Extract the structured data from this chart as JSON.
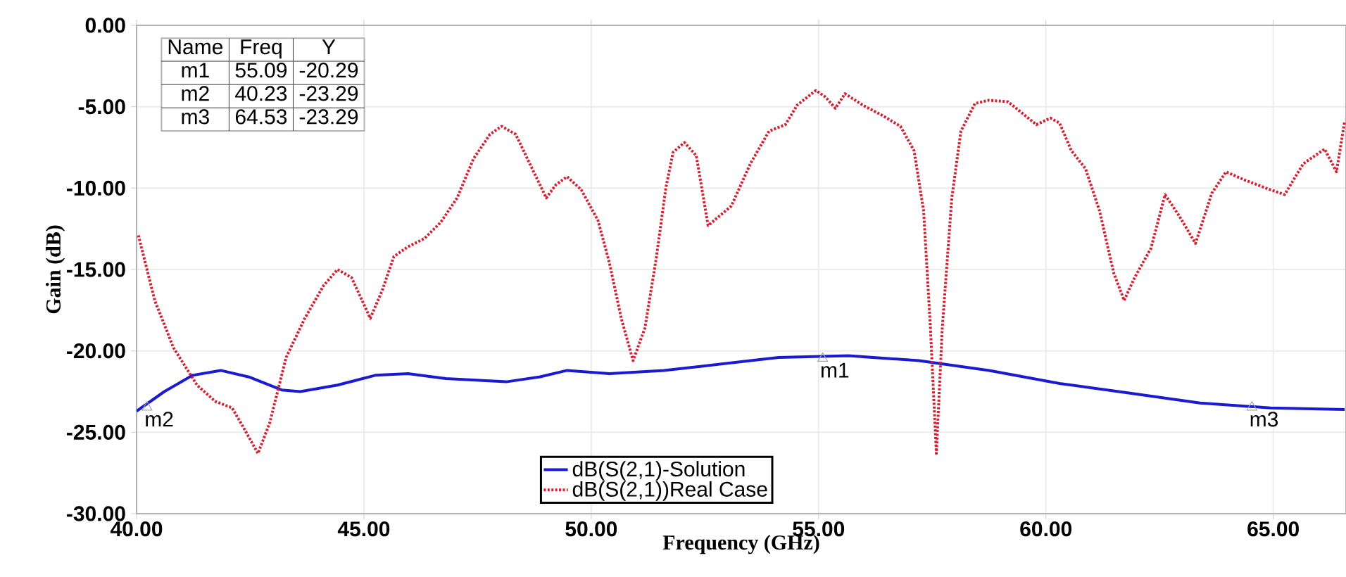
{
  "chart_data": {
    "type": "line",
    "xlabel": "Frequency (GHz)",
    "ylabel": "Gain (dB)",
    "xlim": [
      40,
      66.6
    ],
    "ylim": [
      -30,
      0
    ],
    "xticks": [
      {
        "value": 40,
        "label": "40.00"
      },
      {
        "value": 45,
        "label": "45.00"
      },
      {
        "value": 50,
        "label": "50.00"
      },
      {
        "value": 55,
        "label": "55.00"
      },
      {
        "value": 60,
        "label": "60.00"
      },
      {
        "value": 65,
        "label": "65.00"
      }
    ],
    "yticks": [
      {
        "value": -30,
        "label": "-30.00"
      },
      {
        "value": -25,
        "label": "-25.00"
      },
      {
        "value": -20,
        "label": "-20.00"
      },
      {
        "value": -15,
        "label": "-15.00"
      },
      {
        "value": -10,
        "label": "-10.00"
      },
      {
        "value": -5,
        "label": "-5.00"
      },
      {
        "value": 0,
        "label": "0.00"
      }
    ],
    "grid": true,
    "legend": "bottom",
    "marker": "none",
    "series": [
      {
        "name": "dB(S(2,1)-Solution",
        "color": "#1a1ad0",
        "line_style": "solid",
        "x": [
          40.0,
          40.61,
          41.23,
          41.85,
          42.47,
          43.19,
          43.6,
          44.42,
          45.25,
          45.97,
          46.8,
          48.13,
          48.86,
          49.47,
          50.4,
          51.6,
          52.57,
          54.12,
          55.66,
          57.21,
          58.75,
          60.3,
          61.85,
          63.39,
          64.94,
          66.57
        ],
        "values": [
          -23.7,
          -22.5,
          -21.5,
          -21.2,
          -21.6,
          -22.4,
          -22.5,
          -22.1,
          -21.5,
          -21.4,
          -21.7,
          -21.9,
          -21.6,
          -21.2,
          -21.4,
          -21.2,
          -20.9,
          -20.4,
          -20.3,
          -20.6,
          -21.2,
          -22.0,
          -22.6,
          -23.2,
          -23.5,
          -23.6
        ]
      },
      {
        "name": "dB(S(2,1))Real Case",
        "color": "#d42030",
        "line_style": "dotted",
        "x": [
          40.04,
          40.4,
          40.81,
          41.33,
          41.73,
          42.1,
          42.35,
          42.67,
          42.93,
          43.29,
          43.7,
          44.11,
          44.42,
          44.73,
          45.14,
          45.4,
          45.66,
          45.97,
          46.33,
          46.69,
          47.05,
          47.41,
          47.77,
          48.03,
          48.34,
          48.7,
          49.01,
          49.22,
          49.47,
          49.78,
          50.15,
          50.4,
          50.66,
          50.92,
          51.18,
          51.43,
          51.64,
          51.8,
          52.05,
          52.31,
          52.57,
          53.08,
          53.5,
          53.91,
          54.27,
          54.53,
          54.94,
          55.15,
          55.37,
          55.58,
          55.97,
          56.38,
          56.8,
          57.1,
          57.31,
          57.46,
          57.59,
          57.72,
          57.93,
          58.13,
          58.44,
          58.75,
          59.17,
          59.48,
          59.79,
          60.1,
          60.3,
          60.56,
          60.87,
          61.18,
          61.49,
          61.72,
          61.95,
          62.31,
          62.62,
          62.93,
          63.29,
          63.65,
          63.96,
          64.37,
          64.84,
          65.25,
          65.66,
          66.13,
          66.39,
          66.57
        ],
        "values": [
          -12.9,
          -16.9,
          -19.8,
          -22.1,
          -23.1,
          -23.5,
          -24.7,
          -26.3,
          -24.4,
          -20.4,
          -18.0,
          -16.0,
          -15.0,
          -15.5,
          -18.0,
          -16.3,
          -14.2,
          -13.6,
          -13.1,
          -12.1,
          -10.6,
          -8.2,
          -6.7,
          -6.2,
          -6.7,
          -8.8,
          -10.6,
          -9.8,
          -9.3,
          -10.1,
          -12.0,
          -14.6,
          -18.0,
          -20.6,
          -18.6,
          -14.3,
          -10.0,
          -7.8,
          -7.2,
          -8.0,
          -12.3,
          -11.1,
          -8.5,
          -6.5,
          -6.1,
          -4.9,
          -4.0,
          -4.4,
          -5.1,
          -4.2,
          -4.9,
          -5.5,
          -6.2,
          -7.7,
          -11.4,
          -18.6,
          -26.3,
          -18.6,
          -10.6,
          -6.5,
          -4.8,
          -4.6,
          -4.7,
          -5.4,
          -6.1,
          -5.7,
          -6.0,
          -7.7,
          -8.8,
          -11.4,
          -15.2,
          -16.9,
          -15.5,
          -13.7,
          -10.4,
          -11.7,
          -13.4,
          -10.3,
          -9.0,
          -9.5,
          -10.0,
          -10.4,
          -8.5,
          -7.6,
          -9.0,
          -5.9
        ]
      }
    ],
    "annotations": [
      {
        "text": "m1",
        "x": 55.09,
        "y": -20.29
      },
      {
        "text": "m2",
        "x": 40.23,
        "y": -23.29
      },
      {
        "text": "m3",
        "x": 64.53,
        "y": -23.29
      },
      "Name",
      "Freq",
      "Y",
      "m1",
      "55.09",
      "-20.29",
      "m2",
      "40.23",
      "-23.29",
      "m3",
      "64.53",
      "-23.29"
    ]
  }
}
